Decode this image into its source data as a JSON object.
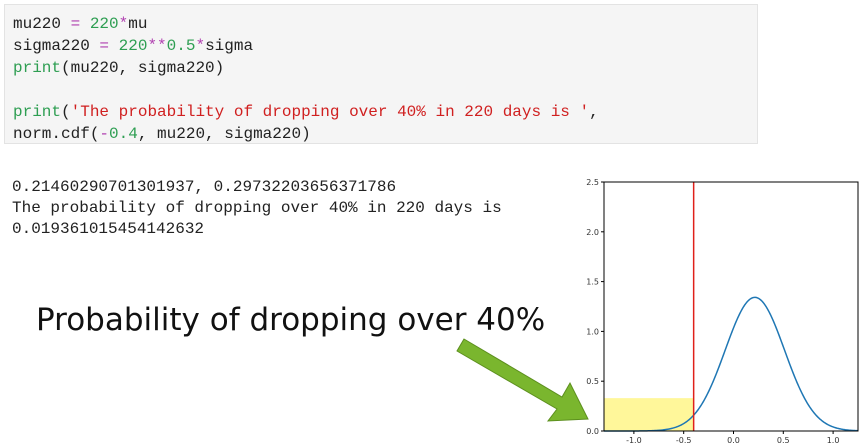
{
  "code": {
    "lines": [
      [
        {
          "t": "mu220 ",
          "c": ""
        },
        {
          "t": "=",
          "c": "tk-op"
        },
        {
          "t": " ",
          "c": ""
        },
        {
          "t": "220",
          "c": "tk-num"
        },
        {
          "t": "*",
          "c": "tk-op"
        },
        {
          "t": "mu",
          "c": ""
        }
      ],
      [
        {
          "t": "sigma220 ",
          "c": ""
        },
        {
          "t": "=",
          "c": "tk-op"
        },
        {
          "t": " ",
          "c": ""
        },
        {
          "t": "220",
          "c": "tk-num"
        },
        {
          "t": "**",
          "c": "tk-op"
        },
        {
          "t": "0.5",
          "c": "tk-num"
        },
        {
          "t": "*",
          "c": "tk-op"
        },
        {
          "t": "sigma",
          "c": ""
        }
      ],
      [
        {
          "t": "print",
          "c": "tk-fn"
        },
        {
          "t": "(mu220, sigma220)",
          "c": ""
        }
      ],
      [],
      [
        {
          "t": "print",
          "c": "tk-fn"
        },
        {
          "t": "(",
          "c": ""
        },
        {
          "t": "'The probability of dropping over 40% in 220 days is '",
          "c": "tk-str"
        },
        {
          "t": ",",
          "c": ""
        }
      ],
      [
        {
          "t": "norm.cdf(",
          "c": ""
        },
        {
          "t": "-",
          "c": "tk-op"
        },
        {
          "t": "0.4",
          "c": "tk-num"
        },
        {
          "t": ", mu220, sigma220)",
          "c": ""
        }
      ]
    ]
  },
  "output": {
    "lines": [
      "0.21460290701301937, 0.29732203656371786",
      "The probability of dropping over 40% in 220 days is",
      "0.019361015454142632"
    ]
  },
  "callout": {
    "text": "Probability of dropping over 40%",
    "arrow_color": "#7ab62e"
  },
  "chart_data": {
    "type": "line",
    "title": "",
    "xlabel": "",
    "ylabel": "",
    "xlim": [
      -1.3,
      1.25
    ],
    "ylim": [
      0,
      2.5
    ],
    "xticks": [
      -1.0,
      -0.5,
      0.0,
      0.5,
      1.0
    ],
    "xtick_labels": [
      "-1.0",
      "-0.5",
      "0.0",
      "0.5",
      "1.0"
    ],
    "yticks": [
      0.0,
      0.5,
      1.0,
      1.5,
      2.0,
      2.5
    ],
    "ytick_labels": [
      "0.0",
      "0.5",
      "1.0",
      "1.5",
      "2.0",
      "2.5"
    ],
    "series": [
      {
        "distribution": "normal",
        "mu": 0.21460290701301937,
        "sigma": 0.29732203656371786,
        "color": "#1f77b4"
      }
    ],
    "vline": {
      "x": -0.4,
      "color": "#e0201a"
    },
    "shaded_region": {
      "x": [
        -1.3,
        -0.4
      ],
      "y": [
        0,
        0.33
      ],
      "color": "#fff79a"
    },
    "grid": false,
    "legend": "none"
  }
}
